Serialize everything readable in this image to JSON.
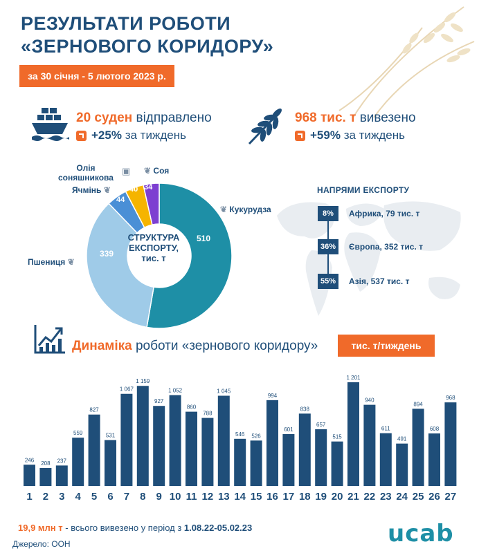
{
  "header": {
    "title_line1": "РЕЗУЛЬТАТИ РОБОТИ",
    "title_line2": "«ЗЕРНОВОГО КОРИДОРУ»",
    "date_range": "за 30 січня - 5 лютого 2023 р."
  },
  "stats": {
    "ships": {
      "value": "20 суден",
      "text": "відправлено",
      "change": "+25%",
      "change_text": "за тиждень",
      "icon": "ship-icon"
    },
    "tonnage": {
      "value": "968 тис. т",
      "text": "вивезено",
      "change": "+59%",
      "change_text": "за тиждень",
      "icon": "wheat-icon"
    }
  },
  "structure": {
    "center_label_line1": "СТРУКТУРА",
    "center_label_line2": "ЕКСПОРТУ,",
    "center_label_line3": "тис. т",
    "labels": {
      "corn": "Кукурудза",
      "wheat": "Пшениця",
      "barley": "Ячмінь",
      "sunflower_line1": "Олія",
      "sunflower_line2": "соняшникова",
      "soy": "Соя"
    },
    "values": {
      "corn": "510",
      "wheat": "339",
      "barley": "44",
      "sunflower": "40",
      "soy": "34"
    }
  },
  "export_directions": {
    "title": "НАПРЯМИ ЕКСПОРТУ",
    "items": [
      {
        "pct": "8%",
        "label": "Африка, 79 тис. т"
      },
      {
        "pct": "36%",
        "label": "Європа, 352 тис. т"
      },
      {
        "pct": "55%",
        "label": "Азія, 537 тис. т"
      }
    ]
  },
  "dynamics": {
    "title_bold": "Динаміка",
    "title_rest": "роботи «зернового коридору»",
    "unit": "тис. т/тиждень"
  },
  "footer": {
    "total_value": "19,9 млн т",
    "total_text": "- всього вивезено у період з",
    "total_period": "1.08.22-05.02.23",
    "source": "Джерело: ООН",
    "logo": "ucab"
  },
  "colors": {
    "navy": "#1f4e79",
    "orange": "#f06a2a",
    "teal": "#1e8fa6",
    "light_blue": "#9fcbe8",
    "mid_blue": "#4a8fd6",
    "yellow": "#f5b400",
    "purple": "#7d3fd1"
  },
  "chart_data": [
    {
      "type": "pie",
      "title": "СТРУКТУРА ЕКСПОРТУ, тис. т",
      "categories": [
        "Кукурудза",
        "Пшениця",
        "Ячмінь",
        "Олія соняшникова",
        "Соя"
      ],
      "values": [
        510,
        339,
        44,
        40,
        34
      ],
      "colors": [
        "#1e8fa6",
        "#9fcbe8",
        "#4a8fd6",
        "#f5b400",
        "#7d3fd1"
      ]
    },
    {
      "type": "bar",
      "title": "Динаміка роботи «зернового коридору»",
      "ylabel": "тис. т/тиждень",
      "categories": [
        "1",
        "2",
        "3",
        "4",
        "5",
        "6",
        "7",
        "8",
        "9",
        "10",
        "11",
        "12",
        "13",
        "14",
        "15",
        "16",
        "17",
        "18",
        "19",
        "20",
        "21",
        "22",
        "23",
        "24",
        "25",
        "26",
        "27"
      ],
      "values": [
        246,
        208,
        237,
        559,
        827,
        531,
        1067,
        1159,
        927,
        1052,
        860,
        788,
        1045,
        546,
        526,
        994,
        601,
        838,
        657,
        515,
        1201,
        940,
        611,
        491,
        894,
        608,
        968
      ],
      "value_labels": [
        "246",
        "208",
        "237",
        "559",
        "827",
        "531",
        "1 067",
        "1 159",
        "927",
        "1 052",
        "860",
        "788",
        "1 045",
        "546",
        "526",
        "994",
        "601",
        "838",
        "657",
        "515",
        "1 201",
        "940",
        "611",
        "491",
        "894",
        "608",
        "968"
      ],
      "ylim": [
        0,
        1250
      ],
      "color": "#1f4e79"
    }
  ]
}
